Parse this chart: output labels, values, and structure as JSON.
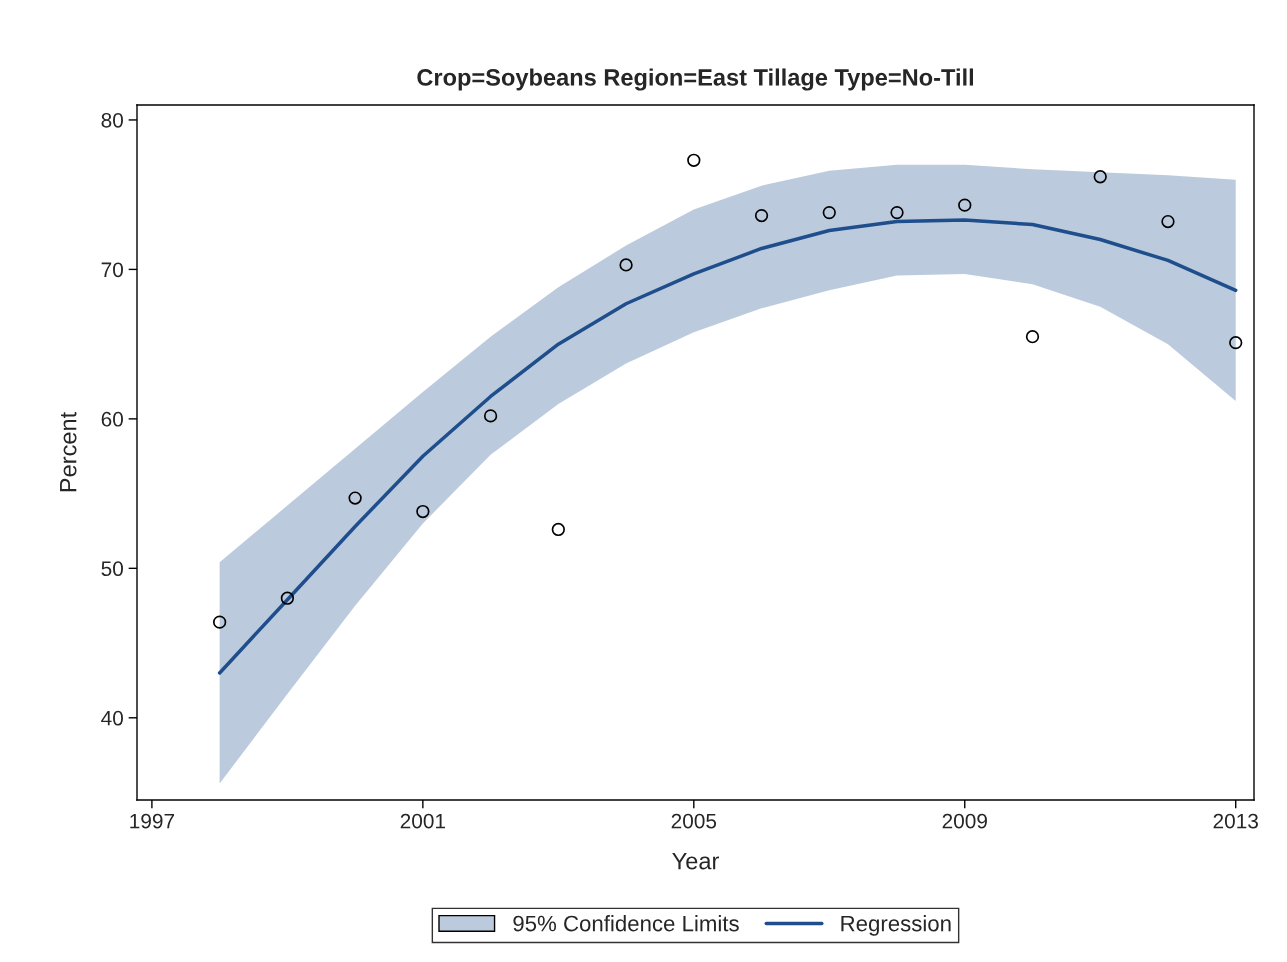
{
  "chart_data": {
    "type": "scatter",
    "title": "Crop=Soybeans Region=East Tillage Type=No-Till",
    "xlabel": "Year",
    "ylabel": "Percent",
    "annotations": [
      "95% Confidence Limits"
    ],
    "x": [
      1998,
      1999,
      2000,
      2001,
      2002,
      2003,
      2004,
      2005,
      2006,
      2007,
      2008,
      2009,
      2010,
      2011,
      2012,
      2013
    ],
    "series": [
      {
        "name": "Regression",
        "type": "line",
        "color": "#1f4e8c",
        "values": [
          43.0,
          47.9,
          52.8,
          57.5,
          61.5,
          65.0,
          67.7,
          69.7,
          71.4,
          72.6,
          73.2,
          73.3,
          73.0,
          72.0,
          70.6,
          68.6
        ],
        "lower": [
          35.6,
          41.6,
          47.5,
          53.0,
          57.6,
          61.0,
          63.7,
          65.8,
          67.4,
          68.6,
          69.6,
          69.7,
          69.0,
          67.5,
          65.0,
          61.2
        ],
        "upper": [
          50.4,
          54.2,
          58.0,
          61.8,
          65.5,
          68.8,
          71.6,
          74.0,
          75.6,
          76.6,
          77.0,
          77.0,
          76.7,
          76.5,
          76.3,
          76.0
        ]
      },
      {
        "type": "scatter",
        "color": "#000000",
        "marker": "circle",
        "values": [
          46.4,
          48.0,
          54.7,
          53.8,
          60.2,
          52.6,
          70.3,
          77.3,
          73.6,
          73.8,
          73.8,
          74.3,
          65.5,
          76.2,
          73.2,
          65.1
        ]
      }
    ],
    "xlim": [
      1996.78,
      2013.27
    ],
    "xticks": [
      1997,
      2001,
      2005,
      2009,
      2013
    ],
    "ylim": [
      34.5,
      81
    ],
    "yticks": [
      40,
      50,
      60,
      70,
      80
    ],
    "grid": false,
    "legend": "bottom"
  }
}
